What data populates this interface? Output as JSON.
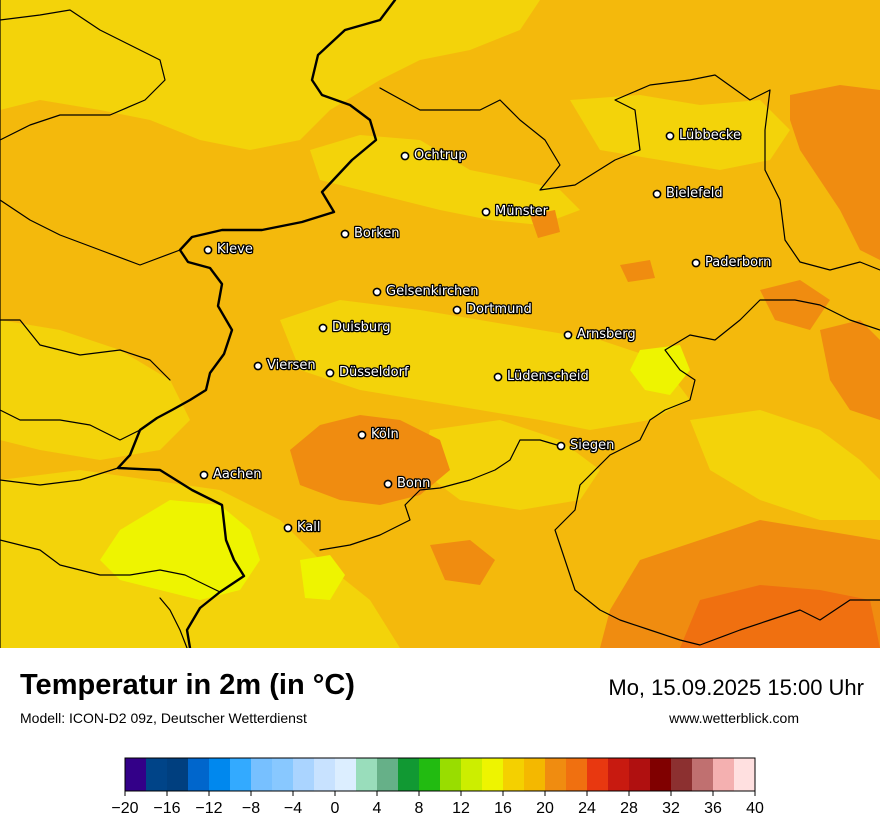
{
  "map": {
    "cities": [
      {
        "name": "Ochtrup"
      },
      {
        "name": "Lübbecke"
      },
      {
        "name": "Bielefeld"
      },
      {
        "name": "Münster"
      },
      {
        "name": "Borken"
      },
      {
        "name": "Kleve"
      },
      {
        "name": "Paderborn"
      },
      {
        "name": "Gelsenkirchen"
      },
      {
        "name": "Dortmund"
      },
      {
        "name": "Duisburg"
      },
      {
        "name": "Arnsberg"
      },
      {
        "name": "Viersen"
      },
      {
        "name": "Düsseldorf"
      },
      {
        "name": "Lüdenscheid"
      },
      {
        "name": "Köln"
      },
      {
        "name": "Siegen"
      },
      {
        "name": "Aachen"
      },
      {
        "name": "Bonn"
      },
      {
        "name": "Kall"
      }
    ]
  },
  "footer": {
    "title": "Temperatur in 2m (in °C)",
    "model": "Modell: ICON-D2 09z, Deutscher Wetterdienst",
    "datetime": "Mo, 15.09.2025 15:00 Uhr",
    "website": "www.wetterblick.com"
  },
  "legend": {
    "ticks": [
      "−20",
      "−16",
      "−12",
      "−8",
      "−4",
      "0",
      "4",
      "8",
      "12",
      "16",
      "20",
      "24",
      "28",
      "32",
      "36",
      "40"
    ],
    "colors": [
      "#330088",
      "#004488",
      "#003f7f",
      "#0066cc",
      "#0088ee",
      "#33aaff",
      "#77c0ff",
      "#88c8ff",
      "#aad4ff",
      "#c8e2ff",
      "#dceeff",
      "#99ddbb",
      "#66b088",
      "#119933",
      "#22bb11",
      "#99dd00",
      "#ccee00",
      "#eef400",
      "#f4d000",
      "#f4b800",
      "#f08c10",
      "#f07010",
      "#e83810",
      "#c81a10",
      "#b01010",
      "#800000",
      "#8c3030",
      "#c07070",
      "#f4b0b0",
      "#ffe0e0"
    ]
  }
}
